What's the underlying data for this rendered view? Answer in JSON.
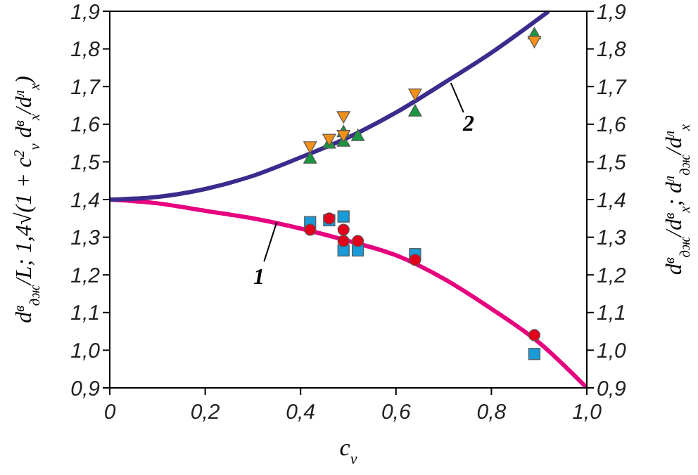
{
  "chart_data": {
    "type": "scatter",
    "xlabel": "c$_{v}$",
    "ylabel": "d$^{в}$$_{дж}$/L; 1,4√(1 + c$^{2}$$_{v}$ d$^{в}$$_{x}$/d$^{л}$$_{x}$)",
    "y2label": "d$^{в}$$_{дж}$/d$^{в}$$_{x}$; d$^{л}$$_{дж}$/d$^{л}$$_{x}$",
    "xlim": [
      0,
      1
    ],
    "xticks": [
      0,
      {
        "value": 0.2,
        "label": "0,2"
      },
      {
        "value": 0.4,
        "label": "0,4"
      },
      {
        "value": 0.6,
        "label": "0,6"
      },
      {
        "value": 0.8,
        "label": "0,8"
      },
      {
        "value": 1,
        "label": "1,0"
      }
    ],
    "ylim": [
      0.9,
      1.9
    ],
    "yticks": [
      {
        "value": 0.9,
        "label": "0,9"
      },
      {
        "value": 1,
        "label": "1,0"
      },
      {
        "value": 1.1,
        "label": "1,1"
      },
      {
        "value": 1.2,
        "label": "1,2"
      },
      {
        "value": 1.3,
        "label": "1,3"
      },
      {
        "value": 1.4,
        "label": "1,4"
      },
      {
        "value": 1.5,
        "label": "1,5"
      },
      {
        "value": 1.6,
        "label": "1,6"
      },
      {
        "value": 1.7,
        "label": "1,7"
      },
      {
        "value": 1.8,
        "label": "1,8"
      },
      {
        "value": 1.9,
        "label": "1,9"
      }
    ],
    "y2lim": [
      0.9,
      1.9
    ],
    "y2ticks": [
      {
        "value": 0.9,
        "label": "0,9"
      },
      {
        "value": 1,
        "label": "1,0"
      },
      {
        "value": 1.1,
        "label": "1,1"
      },
      {
        "value": 1.2,
        "label": "1,2"
      },
      {
        "value": 1.3,
        "label": "1,3"
      },
      {
        "value": 1.4,
        "label": "1,4"
      },
      {
        "value": 1.5,
        "label": "1,5"
      },
      {
        "value": 1.6,
        "label": "1,6"
      },
      {
        "value": 1.7,
        "label": "1,7"
      },
      {
        "value": 1.8,
        "label": "1,8"
      },
      {
        "value": 1.9,
        "label": "1,9"
      }
    ],
    "series": [
      {
        "type": "line",
        "color": "#e6007e",
        "marker": "none",
        "x": [
          0,
          0.1,
          0.2,
          0.3,
          0.4,
          0.5,
          0.6,
          0.7,
          0.8,
          0.9,
          1
        ],
        "values": [
          1.4,
          1.39,
          1.37,
          1.35,
          1.323,
          1.29,
          1.252,
          1.19,
          1.11,
          1.02,
          0.9
        ]
      },
      {
        "type": "line",
        "color": "#3a2b8c",
        "marker": "none",
        "x": [
          0,
          0.1,
          0.2,
          0.3,
          0.4,
          0.5,
          0.6,
          0.7,
          0.8,
          0.92
        ],
        "values": [
          1.4,
          1.407,
          1.428,
          1.463,
          1.512,
          1.565,
          1.631,
          1.709,
          1.79,
          1.9
        ]
      },
      {
        "color": "#1a9641",
        "marker": "triangle",
        "x": [
          0.42,
          0.46,
          0.49,
          0.49,
          0.52,
          0.64,
          0.89
        ],
        "values": [
          1.51,
          1.55,
          1.58,
          1.555,
          1.57,
          1.635,
          1.84
        ]
      },
      {
        "color": "#f39019",
        "marker": "triangle_down",
        "x": [
          0.42,
          0.46,
          0.49,
          0.49,
          0.64,
          0.89
        ],
        "values": [
          1.54,
          1.56,
          1.62,
          1.57,
          1.68,
          1.82
        ]
      },
      {
        "color": "#1a9ad6",
        "marker": "square",
        "x": [
          0.42,
          0.46,
          0.49,
          0.49,
          0.52,
          0.64,
          0.89
        ],
        "values": [
          1.34,
          1.345,
          1.355,
          1.265,
          1.265,
          1.255,
          0.99
        ]
      },
      {
        "color": "#e3001b",
        "marker": "circle",
        "x": [
          0.42,
          0.46,
          0.49,
          0.49,
          0.52,
          0.64,
          0.89
        ],
        "values": [
          1.32,
          1.35,
          1.32,
          1.29,
          1.29,
          1.24,
          1.04
        ]
      }
    ],
    "annotations": [
      {
        "text": "1",
        "x": 0.35,
        "y": 1.34
      },
      {
        "text": "2",
        "x": 0.715,
        "y": 1.71
      }
    ]
  }
}
